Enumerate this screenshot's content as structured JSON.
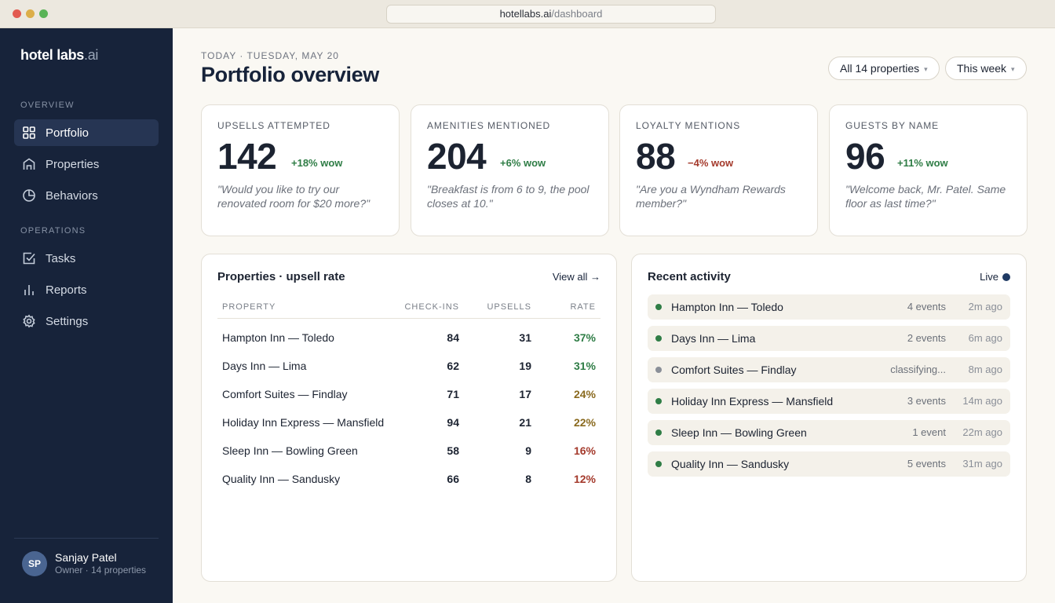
{
  "browser": {
    "url_host": "hotellabs.ai",
    "url_path": "/dashboard"
  },
  "sidebar": {
    "logo_main": "hotel labs",
    "logo_suffix": ".ai",
    "section_overview": "OVERVIEW",
    "section_operations": "OPERATIONS",
    "items": [
      {
        "label": "Portfolio",
        "icon": "grid-icon",
        "active": true
      },
      {
        "label": "Properties",
        "icon": "building-icon",
        "active": false
      },
      {
        "label": "Behaviors",
        "icon": "pie-chart-icon",
        "active": false
      },
      {
        "label": "Tasks",
        "icon": "checkbox-icon",
        "active": false
      },
      {
        "label": "Reports",
        "icon": "bar-chart-icon",
        "active": false
      },
      {
        "label": "Settings",
        "icon": "gear-icon",
        "active": false
      }
    ],
    "user": {
      "initials": "SP",
      "name": "Sanjay Patel",
      "role": "Owner · 14 properties"
    }
  },
  "header": {
    "date_line": "TODAY · TUESDAY, MAY 20",
    "title": "Portfolio overview",
    "filter_properties": "All 14 properties",
    "filter_period": "This week",
    "caret": "▾"
  },
  "kpis": [
    {
      "label": "UPSELLS ATTEMPTED",
      "value": "142",
      "delta": "+18% wow",
      "trend": "up",
      "quote": "\"Would you like to try our renovated room for $20 more?\""
    },
    {
      "label": "AMENITIES MENTIONED",
      "value": "204",
      "delta": "+6% wow",
      "trend": "up",
      "quote": "\"Breakfast is from 6 to 9, the pool closes at 10.\""
    },
    {
      "label": "LOYALTY MENTIONS",
      "value": "88",
      "delta": "−4% wow",
      "trend": "down",
      "quote": "\"Are you a Wyndham Rewards member?\""
    },
    {
      "label": "GUESTS BY NAME",
      "value": "96",
      "delta": "+11% wow",
      "trend": "up",
      "quote": "\"Welcome back, Mr. Patel. Same floor as last time?\""
    }
  ],
  "properties_table": {
    "title": "Properties · upsell rate",
    "view_all": "View all →",
    "columns": [
      "PROPERTY",
      "CHECK-INS",
      "UPSELLS",
      "RATE"
    ],
    "rows": [
      {
        "property": "Hampton Inn — Toledo",
        "checkins": "84",
        "upsells": "31",
        "rate": "37%",
        "rate_color": "#2f7d46"
      },
      {
        "property": "Days Inn — Lima",
        "checkins": "62",
        "upsells": "19",
        "rate": "31%",
        "rate_color": "#2f7d46"
      },
      {
        "property": "Comfort Suites — Findlay",
        "checkins": "71",
        "upsells": "17",
        "rate": "24%",
        "rate_color": "#8a6a1f"
      },
      {
        "property": "Holiday Inn Express — Mansfield",
        "checkins": "94",
        "upsells": "21",
        "rate": "22%",
        "rate_color": "#8a6a1f"
      },
      {
        "property": "Sleep Inn — Bowling Green",
        "checkins": "58",
        "upsells": "9",
        "rate": "16%",
        "rate_color": "#a43a2c"
      },
      {
        "property": "Quality Inn — Sandusky",
        "checkins": "66",
        "upsells": "8",
        "rate": "12%",
        "rate_color": "#a43a2c"
      }
    ]
  },
  "activity": {
    "title": "Recent activity",
    "live_label": "Live",
    "items": [
      {
        "property": "Hampton Inn — Toledo",
        "events": "4 events",
        "time": "2m ago",
        "status_color": "#2f7d46"
      },
      {
        "property": "Days Inn — Lima",
        "events": "2 events",
        "time": "6m ago",
        "status_color": "#2f7d46"
      },
      {
        "property": "Comfort Suites — Findlay",
        "events": "classifying...",
        "time": "8m ago",
        "status_color": "#8a8f98"
      },
      {
        "property": "Holiday Inn Express — Mansfield",
        "events": "3 events",
        "time": "14m ago",
        "status_color": "#2f7d46"
      },
      {
        "property": "Sleep Inn — Bowling Green",
        "events": "1 event",
        "time": "22m ago",
        "status_color": "#2f7d46"
      },
      {
        "property": "Quality Inn — Sandusky",
        "events": "5 events",
        "time": "31m ago",
        "status_color": "#2f7d46"
      }
    ]
  }
}
